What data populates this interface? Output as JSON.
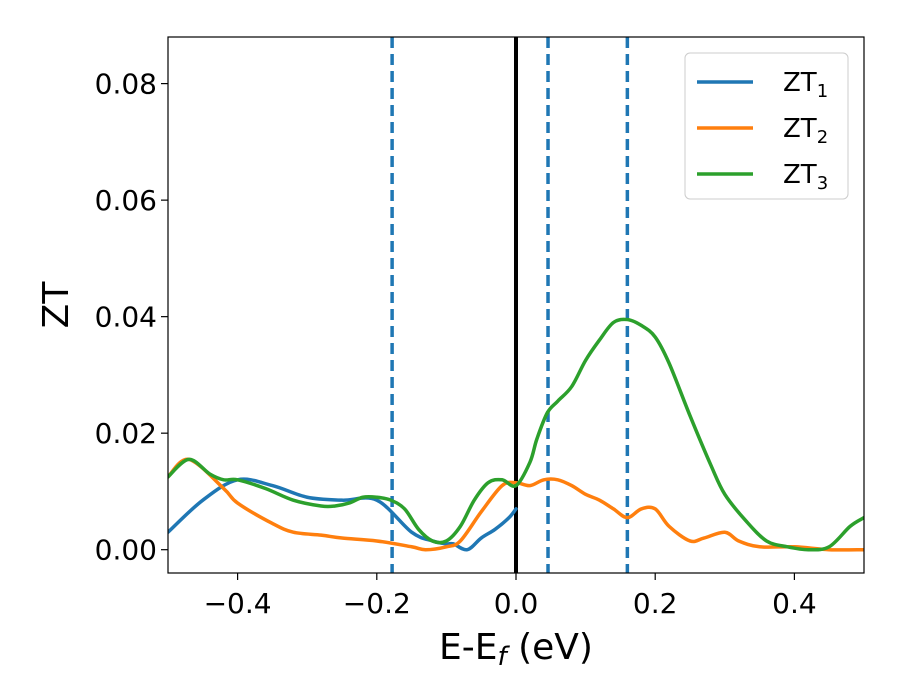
{
  "chart_data": {
    "type": "line",
    "xlabel": "E-E",
    "xlabel_sub": "f",
    "xlabel_unit": " (eV)",
    "ylabel": "ZT",
    "xlim": [
      -0.5,
      0.5
    ],
    "ylim": [
      -0.004,
      0.088
    ],
    "x_ticks": [
      -0.4,
      -0.2,
      0.0,
      0.2,
      0.4
    ],
    "x_tick_labels": [
      "−0.4",
      "−0.2",
      "0.0",
      "0.2",
      "0.4"
    ],
    "y_ticks": [
      0.0,
      0.02,
      0.04,
      0.06,
      0.08
    ],
    "y_tick_labels": [
      "0.00",
      "0.02",
      "0.04",
      "0.06",
      "0.08"
    ],
    "grid": false,
    "legend_placement": "top-right",
    "vertical_lines": [
      {
        "x": 0.0,
        "style": "solid",
        "color": "#000000"
      },
      {
        "x": -0.178,
        "style": "dashed",
        "color": "#1f77b4"
      },
      {
        "x": 0.046,
        "style": "dashed",
        "color": "#1f77b4"
      },
      {
        "x": 0.16,
        "style": "dashed",
        "color": "#1f77b4"
      }
    ],
    "series": [
      {
        "name": "ZT",
        "sub": "1",
        "color": "#1f77b4",
        "x": [
          -0.5,
          -0.45,
          -0.4,
          -0.35,
          -0.3,
          -0.25,
          -0.2,
          -0.15,
          -0.12,
          -0.1,
          -0.09,
          -0.07,
          -0.05,
          -0.03,
          -0.01,
          0.0
        ],
        "y": [
          0.003,
          0.0085,
          0.012,
          0.011,
          0.009,
          0.0085,
          0.0085,
          0.003,
          0.0015,
          0.001,
          0.001,
          0.0,
          0.002,
          0.0035,
          0.0055,
          0.007
        ]
      },
      {
        "name": "ZT",
        "sub": "2",
        "color": "#ff7f0e",
        "x": [
          -0.5,
          -0.47,
          -0.42,
          -0.4,
          -0.35,
          -0.32,
          -0.28,
          -0.25,
          -0.2,
          -0.15,
          -0.13,
          -0.1,
          -0.08,
          -0.05,
          -0.02,
          0.0,
          0.02,
          0.04,
          0.06,
          0.08,
          0.1,
          0.12,
          0.14,
          0.16,
          0.18,
          0.2,
          0.22,
          0.25,
          0.27,
          0.3,
          0.32,
          0.35,
          0.4,
          0.45,
          0.5
        ],
        "y": [
          0.0125,
          0.0155,
          0.0105,
          0.008,
          0.0045,
          0.003,
          0.0025,
          0.002,
          0.0015,
          0.0005,
          0.0,
          0.0005,
          0.0015,
          0.0065,
          0.011,
          0.0115,
          0.011,
          0.012,
          0.012,
          0.011,
          0.0095,
          0.0085,
          0.007,
          0.0055,
          0.007,
          0.007,
          0.004,
          0.0015,
          0.002,
          0.003,
          0.0015,
          0.0005,
          0.0005,
          0.0,
          0.0
        ]
      },
      {
        "name": "ZT",
        "sub": "3",
        "color": "#2ca02c",
        "x": [
          -0.5,
          -0.47,
          -0.44,
          -0.42,
          -0.4,
          -0.36,
          -0.32,
          -0.28,
          -0.26,
          -0.24,
          -0.22,
          -0.2,
          -0.18,
          -0.16,
          -0.14,
          -0.12,
          -0.1,
          -0.08,
          -0.06,
          -0.04,
          -0.02,
          0.0,
          0.02,
          0.03,
          0.045,
          0.06,
          0.08,
          0.1,
          0.12,
          0.14,
          0.16,
          0.18,
          0.2,
          0.22,
          0.25,
          0.28,
          0.3,
          0.33,
          0.36,
          0.39,
          0.42,
          0.45,
          0.48,
          0.5
        ],
        "y": [
          0.0125,
          0.0155,
          0.013,
          0.012,
          0.012,
          0.0105,
          0.0085,
          0.0075,
          0.0075,
          0.008,
          0.009,
          0.009,
          0.0085,
          0.007,
          0.0035,
          0.0015,
          0.0015,
          0.004,
          0.0085,
          0.0115,
          0.012,
          0.011,
          0.015,
          0.019,
          0.0235,
          0.0255,
          0.028,
          0.0325,
          0.036,
          0.039,
          0.0395,
          0.0385,
          0.0365,
          0.032,
          0.023,
          0.0145,
          0.0095,
          0.005,
          0.0015,
          0.0005,
          0.0,
          0.0005,
          0.004,
          0.0055
        ]
      }
    ]
  }
}
